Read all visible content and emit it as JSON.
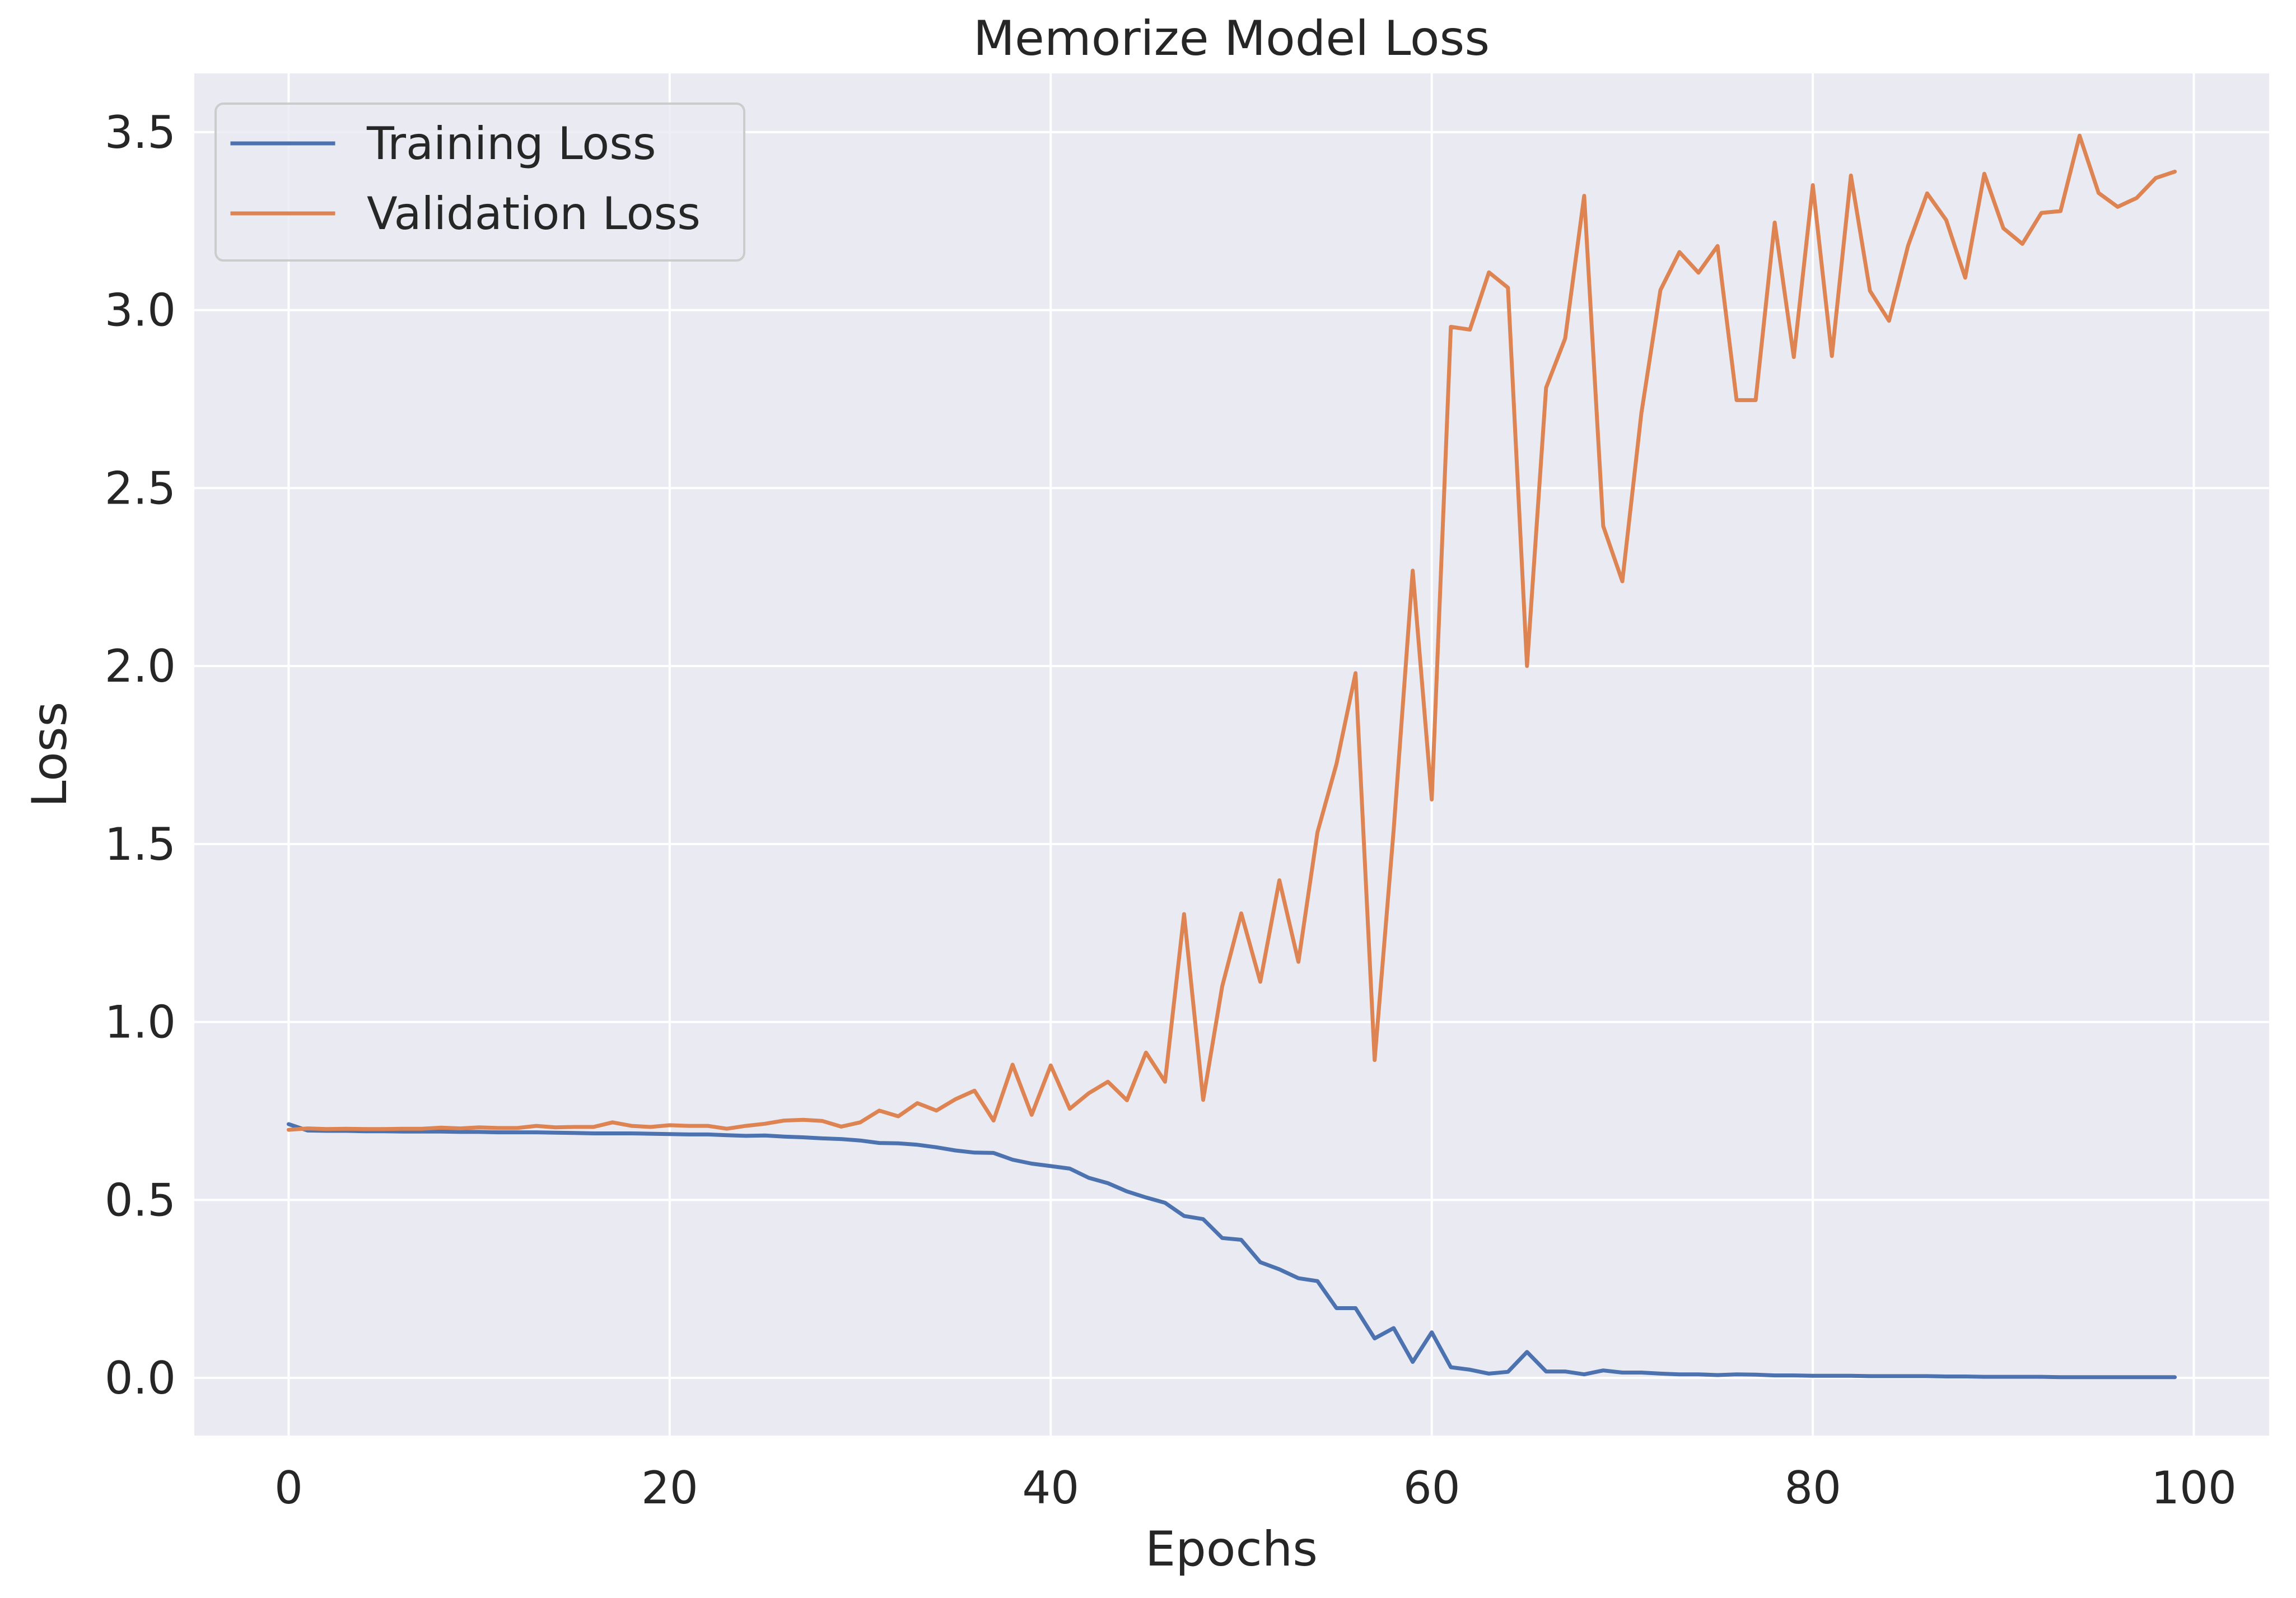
{
  "chart_data": {
    "type": "line",
    "title": "Memorize Model Loss",
    "xlabel": "Epochs",
    "ylabel": "Loss",
    "xlim": [
      -4.95,
      103.95
    ],
    "ylim": [
      -0.162,
      3.665
    ],
    "xticks": [
      0,
      20,
      40,
      60,
      80,
      100
    ],
    "xtick_labels": [
      "0",
      "20",
      "40",
      "60",
      "80",
      "100"
    ],
    "yticks": [
      0.0,
      0.5,
      1.0,
      1.5,
      2.0,
      2.5,
      3.0,
      3.5
    ],
    "ytick_labels": [
      "0.0",
      "0.5",
      "1.0",
      "1.5",
      "2.0",
      "2.5",
      "3.0",
      "3.5"
    ],
    "grid": true,
    "legend_position": "upper-left",
    "colors": {
      "background": "#eaeaf2",
      "grid": "#ffffff",
      "training": "#4c72b0",
      "validation": "#dd8452"
    },
    "series": [
      {
        "name": "Training Loss",
        "color": "#4c72b0",
        "x": [
          0,
          1,
          2,
          3,
          4,
          5,
          6,
          7,
          8,
          9,
          10,
          11,
          12,
          13,
          14,
          15,
          16,
          17,
          18,
          19,
          20,
          21,
          22,
          23,
          24,
          25,
          26,
          27,
          28,
          29,
          30,
          31,
          32,
          33,
          34,
          35,
          36,
          37,
          38,
          39,
          40,
          41,
          42,
          43,
          44,
          45,
          46,
          47,
          48,
          49,
          50,
          51,
          52,
          53,
          54,
          55,
          56,
          57,
          58,
          59,
          60,
          61,
          62,
          63,
          64,
          65,
          66,
          67,
          68,
          69,
          70,
          71,
          72,
          73,
          74,
          75,
          76,
          77,
          78,
          79,
          80,
          81,
          82,
          83,
          84,
          85,
          86,
          87,
          88,
          89,
          90,
          91,
          92,
          93,
          94,
          95,
          96,
          97,
          98,
          99
        ],
        "y": [
          0.713,
          0.695,
          0.694,
          0.694,
          0.693,
          0.693,
          0.692,
          0.692,
          0.692,
          0.691,
          0.691,
          0.69,
          0.69,
          0.69,
          0.689,
          0.688,
          0.687,
          0.687,
          0.687,
          0.686,
          0.685,
          0.684,
          0.684,
          0.682,
          0.68,
          0.681,
          0.678,
          0.676,
          0.673,
          0.671,
          0.667,
          0.66,
          0.659,
          0.655,
          0.648,
          0.639,
          0.633,
          0.632,
          0.613,
          0.602,
          0.595,
          0.588,
          0.562,
          0.547,
          0.524,
          0.507,
          0.492,
          0.455,
          0.446,
          0.393,
          0.388,
          0.325,
          0.305,
          0.28,
          0.272,
          0.196,
          0.196,
          0.111,
          0.14,
          0.045,
          0.128,
          0.03,
          0.023,
          0.012,
          0.017,
          0.073,
          0.018,
          0.018,
          0.01,
          0.021,
          0.015,
          0.015,
          0.012,
          0.01,
          0.01,
          0.008,
          0.01,
          0.009,
          0.007,
          0.007,
          0.006,
          0.006,
          0.006,
          0.005,
          0.005,
          0.005,
          0.005,
          0.004,
          0.004,
          0.003,
          0.003,
          0.003,
          0.003,
          0.002,
          0.002,
          0.002,
          0.002,
          0.002,
          0.002,
          0.002
        ]
      },
      {
        "name": "Validation Loss",
        "color": "#dd8452",
        "x": [
          0,
          1,
          2,
          3,
          4,
          5,
          6,
          7,
          8,
          9,
          10,
          11,
          12,
          13,
          14,
          15,
          16,
          17,
          18,
          19,
          20,
          21,
          22,
          23,
          24,
          25,
          26,
          27,
          28,
          29,
          30,
          31,
          32,
          33,
          34,
          35,
          36,
          37,
          38,
          39,
          40,
          41,
          42,
          43,
          44,
          45,
          46,
          47,
          48,
          49,
          50,
          51,
          52,
          53,
          54,
          55,
          56,
          57,
          58,
          59,
          60,
          61,
          62,
          63,
          64,
          65,
          66,
          67,
          68,
          69,
          70,
          71,
          72,
          73,
          74,
          75,
          76,
          77,
          78,
          79,
          80,
          81,
          82,
          83,
          84,
          85,
          86,
          87,
          88,
          89,
          90,
          91,
          92,
          93,
          94,
          95,
          96,
          97,
          98,
          99
        ],
        "y": [
          0.697,
          0.701,
          0.699,
          0.7,
          0.699,
          0.699,
          0.7,
          0.7,
          0.703,
          0.701,
          0.704,
          0.702,
          0.702,
          0.708,
          0.704,
          0.705,
          0.705,
          0.718,
          0.708,
          0.705,
          0.71,
          0.708,
          0.708,
          0.7,
          0.708,
          0.714,
          0.723,
          0.725,
          0.722,
          0.706,
          0.718,
          0.751,
          0.735,
          0.772,
          0.751,
          0.783,
          0.807,
          0.723,
          0.88,
          0.739,
          0.878,
          0.756,
          0.8,
          0.832,
          0.78,
          0.914,
          0.832,
          1.303,
          0.781,
          1.1,
          1.305,
          1.113,
          1.398,
          1.169,
          1.533,
          1.725,
          1.98,
          0.893,
          1.54,
          2.268,
          1.625,
          2.953,
          2.945,
          3.106,
          3.063,
          2.0,
          2.782,
          2.92,
          3.321,
          2.393,
          2.238,
          2.71,
          3.056,
          3.163,
          3.105,
          3.18,
          2.747,
          2.747,
          3.246,
          2.868,
          3.351,
          2.871,
          3.378,
          3.054,
          2.97,
          3.181,
          3.328,
          3.253,
          3.091,
          3.383,
          3.23,
          3.186,
          3.273,
          3.278,
          3.49,
          3.329,
          3.29,
          3.315,
          3.371,
          3.389
        ]
      }
    ]
  }
}
